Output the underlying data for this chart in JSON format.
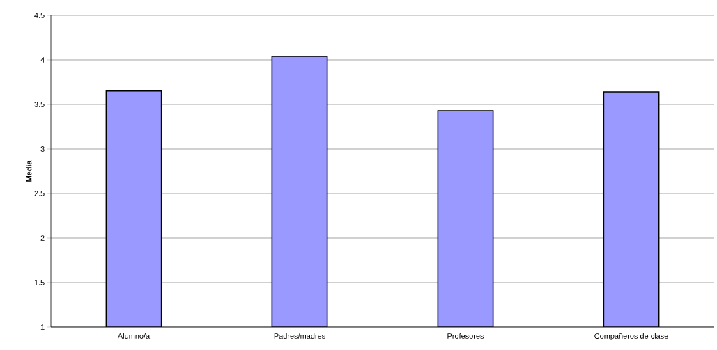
{
  "chart_data": {
    "type": "bar",
    "ylabel": "Media",
    "categories": [
      "Alumno/a",
      "Padres/madres",
      "Profesores",
      "Compañeros de clase"
    ],
    "values": [
      3.65,
      4.04,
      3.43,
      3.64
    ],
    "color": "#9999ff",
    "ylim": [
      1,
      4.5
    ],
    "yticks": [
      1,
      1.5,
      2,
      2.5,
      3,
      3.5,
      4,
      4.5
    ],
    "grid": "y"
  }
}
